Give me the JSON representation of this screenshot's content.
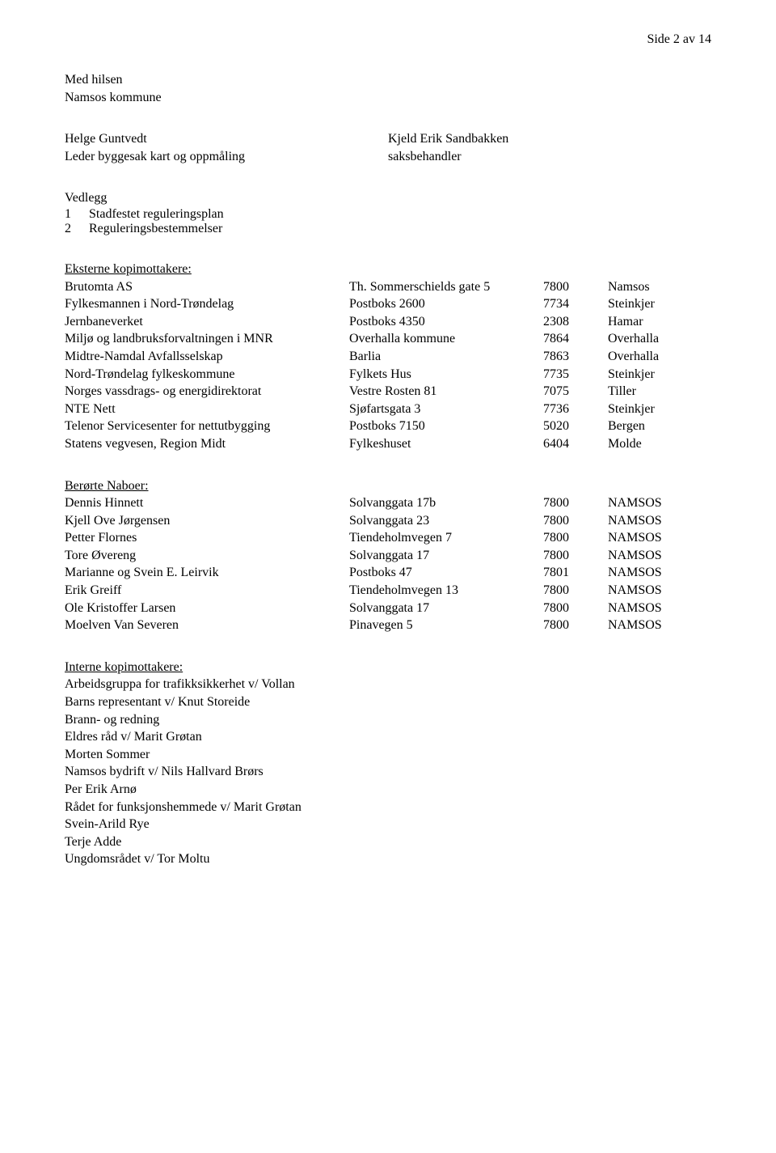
{
  "header": {
    "page_label": "Side 2 av 14"
  },
  "greeting": {
    "line1": "Med hilsen",
    "line2": "Namsos kommune"
  },
  "signers": {
    "left_name": "Helge Guntvedt",
    "left_title": "Leder byggesak kart og oppmåling",
    "right_name": "Kjeld Erik Sandbakken",
    "right_title": "saksbehandler"
  },
  "vedlegg": {
    "title": "Vedlegg",
    "items": [
      {
        "num": "1",
        "text": "Stadfestet reguleringsplan"
      },
      {
        "num": "2",
        "text": "Reguleringsbestemmelser"
      }
    ]
  },
  "eksterne": {
    "title": "Eksterne kopimottakere:",
    "rows": [
      {
        "name": "Brutomta AS",
        "addr": "Th. Sommerschields gate 5",
        "post": "7800",
        "city": "Namsos"
      },
      {
        "name": "Fylkesmannen i Nord-Trøndelag",
        "addr": "Postboks 2600",
        "post": "7734",
        "city": "Steinkjer"
      },
      {
        "name": "Jernbaneverket",
        "addr": "Postboks 4350",
        "post": "2308",
        "city": "Hamar"
      },
      {
        "name": "Miljø og landbruksforvaltningen i MNR",
        "addr": "Overhalla kommune",
        "post": "7864",
        "city": "Overhalla"
      },
      {
        "name": "Midtre-Namdal Avfallsselskap",
        "addr": "Barlia",
        "post": "7863",
        "city": "Overhalla"
      },
      {
        "name": "Nord-Trøndelag fylkeskommune",
        "addr": "Fylkets Hus",
        "post": "7735",
        "city": "Steinkjer"
      },
      {
        "name": "Norges vassdrags- og energidirektorat",
        "addr": "Vestre Rosten 81",
        "post": "7075",
        "city": "Tiller"
      },
      {
        "name": "NTE Nett",
        "addr": "Sjøfartsgata 3",
        "post": "7736",
        "city": "Steinkjer"
      },
      {
        "name": "Telenor Servicesenter for nettutbygging",
        "addr": "Postboks 7150",
        "post": "5020",
        "city": "Bergen"
      },
      {
        "name": "Statens vegvesen, Region Midt",
        "addr": "Fylkeshuset",
        "post": "6404",
        "city": "Molde"
      }
    ]
  },
  "naboer": {
    "title": "Berørte Naboer:",
    "rows": [
      {
        "name": "Dennis Hinnett",
        "addr": "Solvanggata 17b",
        "post": "7800",
        "city": "NAMSOS"
      },
      {
        "name": "Kjell Ove Jørgensen",
        "addr": "Solvanggata 23",
        "post": "7800",
        "city": "NAMSOS"
      },
      {
        "name": "Petter Flornes",
        "addr": "Tiendeholmvegen 7",
        "post": "7800",
        "city": "NAMSOS"
      },
      {
        "name": "Tore Øvereng",
        "addr": "Solvanggata 17",
        "post": "7800",
        "city": "NAMSOS"
      },
      {
        "name": "Marianne og Svein E. Leirvik",
        "addr": "Postboks 47",
        "post": "7801",
        "city": "NAMSOS"
      },
      {
        "name": "Erik Greiff",
        "addr": "Tiendeholmvegen 13",
        "post": "7800",
        "city": "NAMSOS"
      },
      {
        "name": "Ole Kristoffer Larsen",
        "addr": "Solvanggata 17",
        "post": "7800",
        "city": "NAMSOS"
      },
      {
        "name": "Moelven Van Severen",
        "addr": "Pinavegen 5",
        "post": "7800",
        "city": "NAMSOS"
      }
    ]
  },
  "interne": {
    "title": "Interne kopimottakere:",
    "items": [
      "Arbeidsgruppa for trafikksikkerhet v/ Vollan",
      "Barns representant v/ Knut Storeide",
      "Brann- og redning",
      "Eldres råd v/ Marit Grøtan",
      "Morten Sommer",
      "Namsos bydrift v/ Nils Hallvard Brørs",
      "Per Erik Arnø",
      "Rådet for funksjonshemmede v/ Marit Grøtan",
      "Svein-Arild Rye",
      "Terje Adde",
      "Ungdomsrådet v/ Tor Moltu"
    ]
  }
}
